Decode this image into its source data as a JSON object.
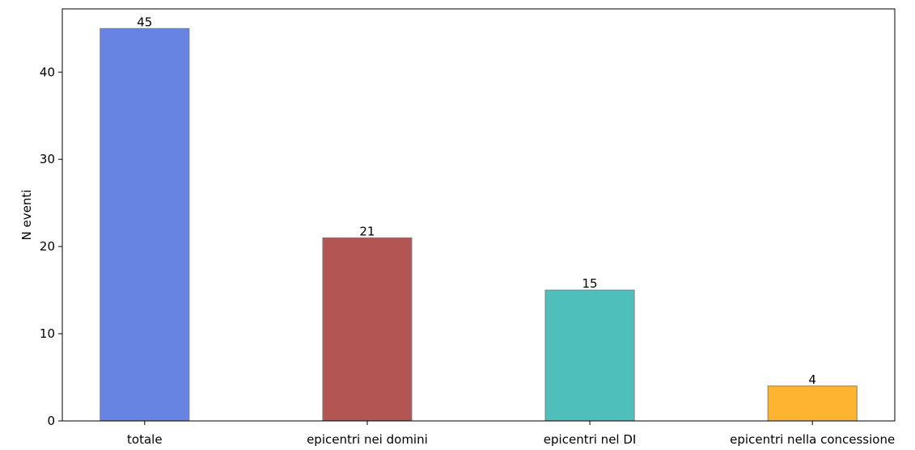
{
  "chart_data": {
    "type": "bar",
    "title": "",
    "xlabel": "",
    "ylabel": "N eventi",
    "categories": [
      "totale",
      "epicentri nei domini",
      "epicentri nel DI",
      "epicentri nella concessione"
    ],
    "values": [
      45,
      21,
      15,
      4
    ],
    "data_labels": [
      "45",
      "21",
      "15",
      "4"
    ],
    "colors": [
      "#6784e3",
      "#b35553",
      "#4ebfba",
      "#ffb431"
    ],
    "edge_color": "#7f7f7f",
    "ylim": [
      0,
      47.25
    ],
    "yticks": [
      0,
      10,
      20,
      30,
      40
    ],
    "ytick_labels": [
      "0",
      "10",
      "20",
      "30",
      "40"
    ],
    "grid": false,
    "legend": "none"
  }
}
